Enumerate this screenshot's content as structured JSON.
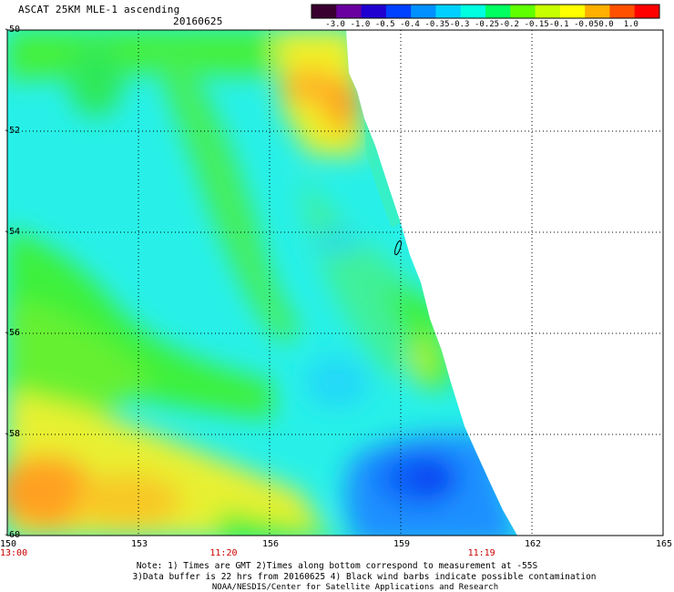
{
  "header": {
    "title": "ASCAT 25KM MLE-1 ascending",
    "date": "20160625"
  },
  "colorbar": {
    "labels": [
      "-3.0",
      "-1.0",
      "-0.5",
      "-0.4",
      "-0.35",
      "-0.3",
      "-0.25",
      "-0.2",
      "-0.15",
      "-0.1",
      "-0.05",
      "0.0",
      "1.0"
    ],
    "colors": [
      "#3a0030",
      "#6a00a0",
      "#2000d0",
      "#0040ff",
      "#0090ff",
      "#00d0ff",
      "#00ffe0",
      "#00ff60",
      "#60ff00",
      "#c8ff00",
      "#ffff00",
      "#ffb000",
      "#ff5000",
      "#ff0000"
    ]
  },
  "map": {
    "lon_ticks": [
      "150",
      "153",
      "156",
      "159",
      "162",
      "165"
    ],
    "lat_ticks": [
      "-50",
      "-52",
      "-54",
      "-56",
      "-58",
      "-60"
    ],
    "lon_range": [
      150,
      165
    ],
    "lat_range": [
      -50,
      -60
    ]
  },
  "times": [
    {
      "label": "13:00",
      "lon": 150
    },
    {
      "label": "11:20",
      "lon": 154.8
    },
    {
      "label": "11:19",
      "lon": 160.7
    }
  ],
  "notes": {
    "line1": "Note: 1) Times are GMT 2)Times along bottom correspond to measurement at -55S",
    "line2": "3)Data buffer is 22 hrs from 20160625 4) Black wind barbs indicate possible contamination",
    "line3": "NOAA/NESDIS/Center for Satellite Applications and Research"
  },
  "palette": {
    "blue": "#0a50f0",
    "mid_blue": "#1f90ff",
    "cyan": "#20e6f0",
    "aqua": "#30f8c8",
    "green": "#30f030",
    "yellow_green": "#b0f030",
    "yellow": "#f0f020",
    "orange": "#ffb020",
    "dark_orange": "#ff7a00",
    "time_red": "#cc0000"
  }
}
